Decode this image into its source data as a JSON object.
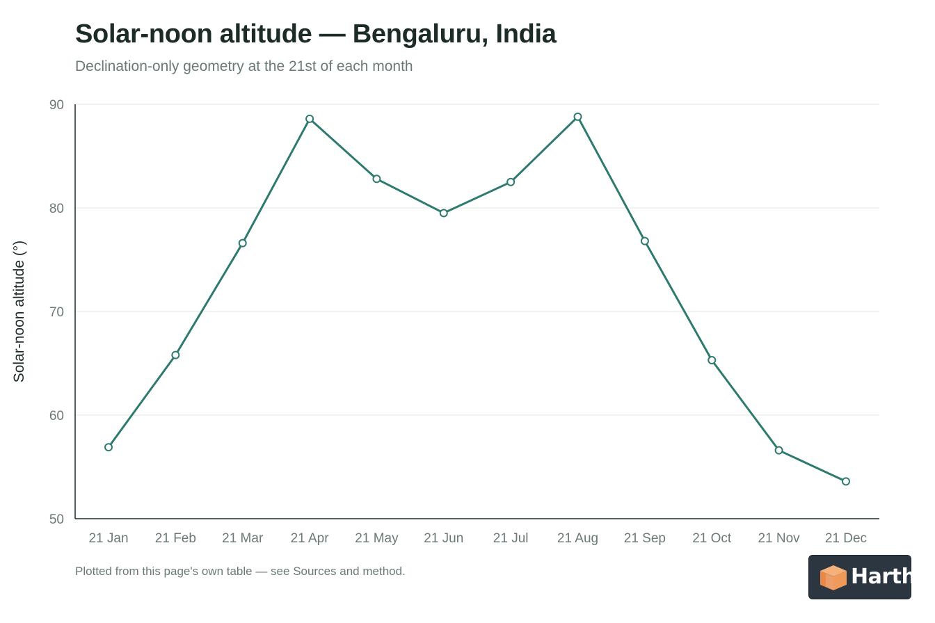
{
  "chart_data": {
    "type": "line",
    "title": "Solar-noon altitude — Bengaluru, India",
    "subtitle": "Declination-only geometry at the 21st of each month",
    "xlabel": "",
    "ylabel": "Solar-noon altitude (°)",
    "categories": [
      "21 Jan",
      "21 Feb",
      "21 Mar",
      "21 Apr",
      "21 May",
      "21 Jun",
      "21 Jul",
      "21 Aug",
      "21 Sep",
      "21 Oct",
      "21 Nov",
      "21 Dec"
    ],
    "series": [
      {
        "values": [
          56.9,
          65.8,
          76.6,
          88.6,
          82.8,
          79.5,
          82.5,
          88.8,
          76.8,
          65.3,
          56.6,
          53.6
        ],
        "color": "#2f7a6e"
      }
    ],
    "ylim": [
      50,
      90
    ],
    "yticks": [
      50,
      60,
      70,
      80,
      90
    ],
    "grid": true,
    "legend": "none"
  },
  "footnote": "Plotted from this page's own table — see Sources and method.",
  "logo": {
    "text": "Harth",
    "icon": "cube-logo-icon"
  }
}
